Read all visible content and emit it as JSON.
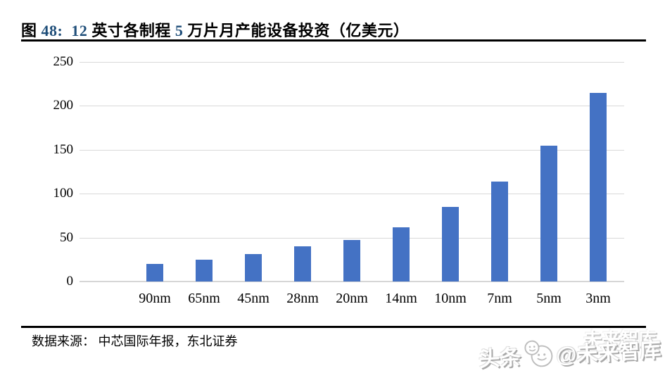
{
  "figure": {
    "title_full": "图 48: 12英寸各制程5万片月产能设备投资（亿美元）",
    "title_parts": [
      {
        "text": "图 ",
        "color": "#000000"
      },
      {
        "text": "48:",
        "color": "#1F4E79"
      },
      {
        "text": "  12 ",
        "color": "#1F4E79"
      },
      {
        "text": "英寸各制程 ",
        "color": "#000000"
      },
      {
        "text": "5 ",
        "color": "#1F4E79"
      },
      {
        "text": "万片月产能设备投资（亿美元）",
        "color": "#000000"
      }
    ]
  },
  "chart_data": {
    "type": "bar",
    "title": "12英寸各制程5万片月产能设备投资（亿美元）",
    "categories": [
      "90nm",
      "65nm",
      "45nm",
      "28nm",
      "20nm",
      "14nm",
      "10nm",
      "7nm",
      "5nm",
      "3nm"
    ],
    "values": [
      20,
      25,
      31,
      40,
      47,
      62,
      85,
      114,
      155,
      215
    ],
    "xlabel": "",
    "ylabel": "",
    "ylim": [
      0,
      250
    ],
    "yticks": [
      0,
      50,
      100,
      150,
      200,
      250
    ],
    "grid": true,
    "legend": false,
    "bar_color": "#4472C4"
  },
  "footer": {
    "source_label": "数据来源：",
    "source_text": " 中芯国际年报，东北证券"
  },
  "watermark": {
    "prefix": "头条",
    "logo_icon": "toutiao-smiley-logo",
    "handle": "@未来智库",
    "ghost_text": "未来智库"
  },
  "colors": {
    "bar": "#4472C4",
    "gridline": "#D9D9D9",
    "axisline": "#D6D6D6",
    "title_number": "#1F4E79",
    "rule": "#000000",
    "text": "#000000"
  }
}
